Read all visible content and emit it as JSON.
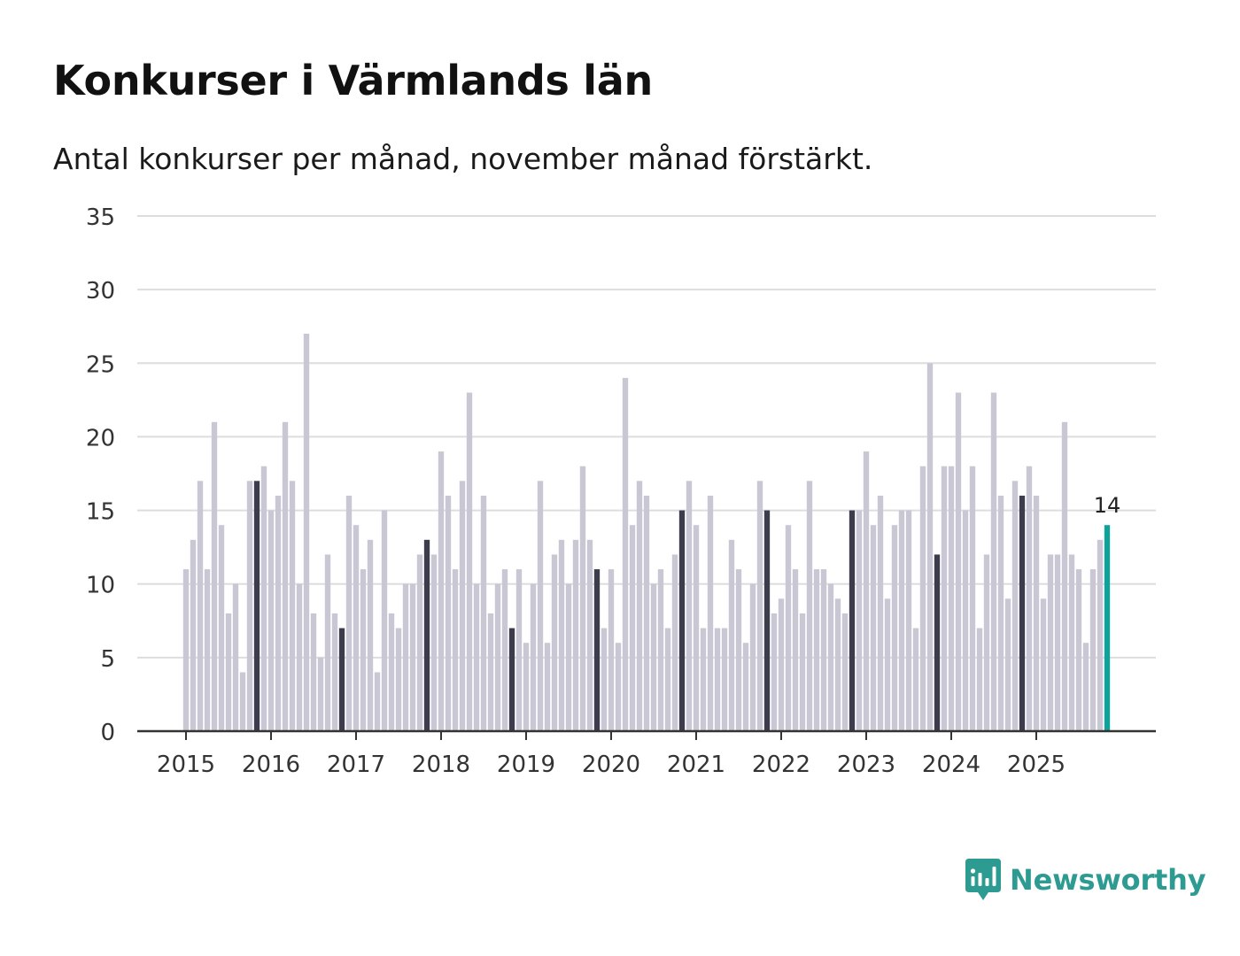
{
  "title": "Konkurser i Värmlands län",
  "subtitle": "Antal konkurser per månad, november månad förstärkt.",
  "brand": {
    "name": "Newsworthy"
  },
  "colors": {
    "bar": "#c8c7d3",
    "bar_november": "#3d3c4c",
    "bar_latest": "#0ea39a",
    "grid": "#dddddd",
    "axis": "#333333",
    "brand": "#2e9b93"
  },
  "chart_data": {
    "type": "bar",
    "title": "Konkurser i Värmlands län",
    "subtitle": "Antal konkurser per månad, november månad förstärkt.",
    "xlabel": "",
    "ylabel": "",
    "ylim": [
      0,
      35
    ],
    "yticks": [
      0,
      5,
      10,
      15,
      20,
      25,
      30,
      35
    ],
    "grid": true,
    "start": "2015-01",
    "xtick_labels": [
      "2015",
      "2016",
      "2017",
      "2018",
      "2019",
      "2020",
      "2021",
      "2022",
      "2023",
      "2024",
      "2025"
    ],
    "highlight_month": "november",
    "latest_label": "14",
    "series": [
      {
        "name": "Konkurser",
        "values": [
          11,
          13,
          17,
          11,
          21,
          14,
          8,
          10,
          4,
          17,
          17,
          18,
          15,
          16,
          21,
          17,
          10,
          27,
          8,
          5,
          12,
          8,
          7,
          16,
          14,
          11,
          13,
          4,
          15,
          8,
          7,
          10,
          10,
          12,
          13,
          12,
          19,
          16,
          11,
          17,
          23,
          10,
          16,
          8,
          10,
          11,
          7,
          11,
          6,
          10,
          17,
          6,
          12,
          13,
          10,
          13,
          18,
          13,
          11,
          7,
          11,
          6,
          24,
          14,
          17,
          16,
          10,
          11,
          7,
          12,
          15,
          17,
          14,
          7,
          16,
          7,
          7,
          13,
          11,
          6,
          10,
          17,
          15,
          8,
          9,
          14,
          11,
          8,
          17,
          11,
          11,
          10,
          9,
          8,
          15,
          15,
          19,
          14,
          16,
          9,
          14,
          15,
          15,
          7,
          18,
          25,
          12,
          18,
          18,
          23,
          15,
          18,
          7,
          12,
          23,
          16,
          9,
          17,
          16,
          18,
          16,
          9,
          12,
          12,
          21,
          12,
          11,
          6,
          11,
          13,
          14
        ]
      }
    ]
  }
}
